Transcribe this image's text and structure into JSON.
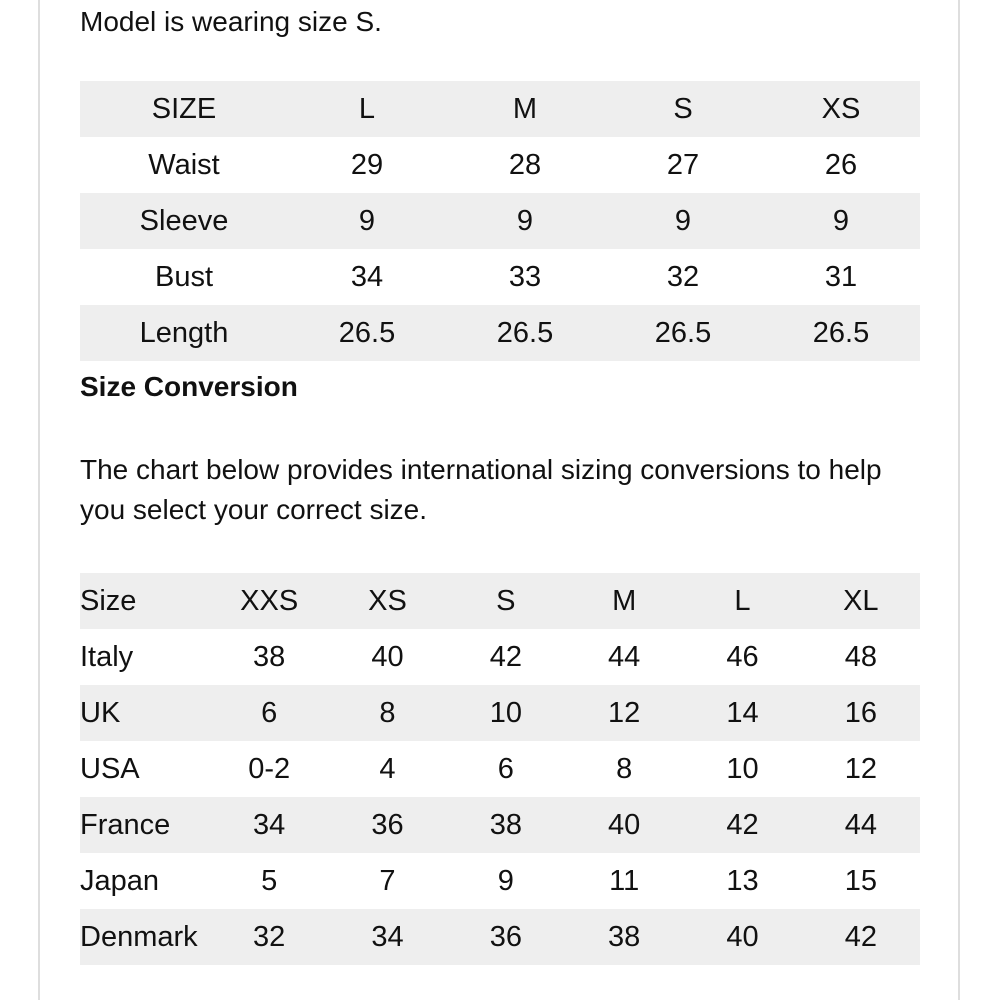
{
  "model_note": "Model is wearing size S.",
  "size_chart": {
    "header": [
      "SIZE",
      "L",
      "M",
      "S",
      "XS"
    ],
    "rows": [
      [
        "Waist",
        "29",
        "28",
        "27",
        "26"
      ],
      [
        "Sleeve",
        "9",
        "9",
        "9",
        "9"
      ],
      [
        "Bust",
        "34",
        "33",
        "32",
        "31"
      ],
      [
        "Length",
        "26.5",
        "26.5",
        "26.5",
        "26.5"
      ]
    ]
  },
  "conversion": {
    "title": "Size Conversion",
    "intro": "The chart below provides international sizing conversions to help you select your correct size.",
    "header": [
      "Size",
      "XXS",
      "XS",
      "S",
      "M",
      "L",
      "XL"
    ],
    "rows": [
      [
        "Italy",
        "38",
        "40",
        "42",
        "44",
        "46",
        "48"
      ],
      [
        "UK",
        "6",
        "8",
        "10",
        "12",
        "14",
        "16"
      ],
      [
        "USA",
        "0-2",
        "4",
        "6",
        "8",
        "10",
        "12"
      ],
      [
        "France",
        "34",
        "36",
        "38",
        "40",
        "42",
        "44"
      ],
      [
        "Japan",
        "5",
        "7",
        "9",
        "11",
        "13",
        "15"
      ],
      [
        "Denmark",
        "32",
        "34",
        "36",
        "38",
        "40",
        "42"
      ]
    ]
  },
  "colors": {
    "row_shade": "#eeeeee",
    "border": "#dedede",
    "text": "#111111"
  }
}
